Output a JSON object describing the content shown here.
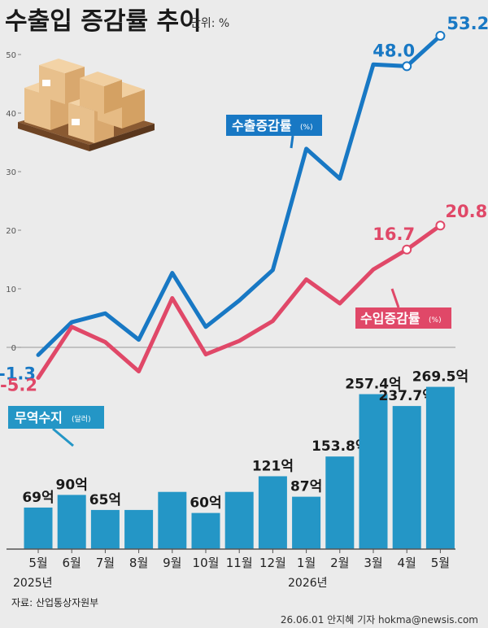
{
  "title": "수출입 증감률 추이",
  "unit": "단위: %",
  "colors": {
    "export": "#1878c4",
    "import": "#e04868",
    "bar": "#2496c6",
    "background": "#ebebeb"
  },
  "labels": {
    "export_tag": "수출증감률",
    "export_tag_unit": "(%)",
    "import_tag": "수입증감률",
    "import_tag_unit": "(%)",
    "balance_tag": "무역수지",
    "balance_tag_unit": "(달러)"
  },
  "years": {
    "start": "2025년",
    "end": "2026년"
  },
  "source": "자료: 산업통상자원부",
  "credit": "26.06.01 안지혜 기자  hokma@newsis.com",
  "chart_data": [
    {
      "type": "line",
      "title": "",
      "categories": [
        "5월",
        "6월",
        "7월",
        "8월",
        "9월",
        "10월",
        "11월",
        "12월",
        "1월",
        "2월",
        "3월",
        "4월",
        "5월"
      ],
      "ylim": [
        -5,
        55
      ],
      "yticks": [
        0,
        10,
        20,
        30,
        40,
        50
      ],
      "grid": false,
      "series": [
        {
          "name": "수출증감률",
          "values": [
            -1.3,
            4.3,
            5.8,
            1.3,
            12.7,
            3.5,
            8.0,
            13.2,
            33.9,
            28.8,
            48.3,
            48.0,
            53.2
          ],
          "labeled": [
            {
              "index": 0,
              "text": "-1.3"
            },
            {
              "index": 11,
              "text": "48.0"
            },
            {
              "index": 12,
              "text": "53.2"
            }
          ]
        },
        {
          "name": "수입증감률",
          "values": [
            -5.2,
            3.5,
            0.9,
            -4.1,
            8.4,
            -1.2,
            1.1,
            4.5,
            11.6,
            7.5,
            13.3,
            16.7,
            20.8
          ],
          "labeled": [
            {
              "index": 0,
              "text": "-5.2"
            },
            {
              "index": 11,
              "text": "16.7"
            },
            {
              "index": 12,
              "text": "20.8"
            }
          ]
        }
      ]
    },
    {
      "type": "bar",
      "title": "",
      "series_name": "무역수지",
      "unit": "억",
      "categories": [
        "5월",
        "6월",
        "7월",
        "8월",
        "9월",
        "10월",
        "11월",
        "12월",
        "1월",
        "2월",
        "3월",
        "4월",
        "5월"
      ],
      "values": [
        69,
        90,
        65,
        65,
        95,
        60,
        95,
        121,
        87,
        153.8,
        257.4,
        237.7,
        269.5
      ],
      "value_labels": [
        "69억",
        "90억",
        "65억",
        "",
        "",
        "60억",
        "",
        "121억",
        "87억",
        "153.8억",
        "257.4억",
        "237.7억",
        "269.5억"
      ]
    }
  ]
}
